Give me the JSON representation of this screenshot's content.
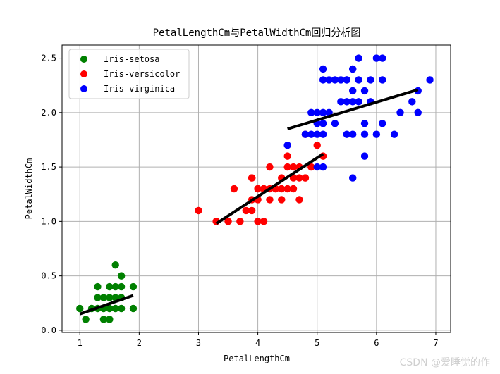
{
  "chart_data": {
    "type": "scatter",
    "title": "PetalLengthCm与PetalWidthCm回归分析图",
    "xlabel": "PetalLengthCm",
    "ylabel": "PetalWidthCm",
    "xlim": [
      0.7,
      7.25
    ],
    "ylim": [
      -0.02,
      2.62
    ],
    "xticks": [
      1,
      2,
      3,
      4,
      5,
      6,
      7
    ],
    "xtick_labels": [
      "1",
      "2",
      "3",
      "4",
      "5",
      "6",
      "7"
    ],
    "yticks": [
      0.0,
      0.5,
      1.0,
      1.5,
      2.0,
      2.5
    ],
    "ytick_labels": [
      "0.0",
      "0.5",
      "1.0",
      "1.5",
      "2.0",
      "2.5"
    ],
    "grid": true,
    "legend_position": "top-left",
    "series": [
      {
        "name": "Iris-setosa",
        "color": "#008000",
        "points": [
          [
            1.0,
            0.2
          ],
          [
            1.1,
            0.1
          ],
          [
            1.2,
            0.2
          ],
          [
            1.3,
            0.2
          ],
          [
            1.3,
            0.3
          ],
          [
            1.3,
            0.4
          ],
          [
            1.4,
            0.1
          ],
          [
            1.4,
            0.2
          ],
          [
            1.4,
            0.3
          ],
          [
            1.5,
            0.1
          ],
          [
            1.5,
            0.2
          ],
          [
            1.5,
            0.3
          ],
          [
            1.5,
            0.4
          ],
          [
            1.6,
            0.2
          ],
          [
            1.6,
            0.4
          ],
          [
            1.6,
            0.6
          ],
          [
            1.7,
            0.2
          ],
          [
            1.7,
            0.3
          ],
          [
            1.7,
            0.4
          ],
          [
            1.7,
            0.5
          ],
          [
            1.9,
            0.2
          ],
          [
            1.9,
            0.4
          ],
          [
            1.6,
            0.3
          ],
          [
            1.5,
            0.1
          ]
        ],
        "fit": [
          [
            1.0,
            0.15
          ],
          [
            1.9,
            0.32
          ]
        ]
      },
      {
        "name": "Iris-versicolor",
        "color": "#ff0000",
        "points": [
          [
            3.0,
            1.1
          ],
          [
            3.3,
            1.0
          ],
          [
            3.5,
            1.0
          ],
          [
            3.6,
            1.3
          ],
          [
            3.7,
            1.0
          ],
          [
            3.8,
            1.1
          ],
          [
            3.9,
            1.1
          ],
          [
            3.9,
            1.2
          ],
          [
            3.9,
            1.4
          ],
          [
            4.0,
            1.0
          ],
          [
            4.0,
            1.2
          ],
          [
            4.0,
            1.3
          ],
          [
            4.1,
            1.0
          ],
          [
            4.1,
            1.3
          ],
          [
            4.2,
            1.2
          ],
          [
            4.2,
            1.3
          ],
          [
            4.2,
            1.5
          ],
          [
            4.3,
            1.3
          ],
          [
            4.4,
            1.2
          ],
          [
            4.4,
            1.3
          ],
          [
            4.4,
            1.4
          ],
          [
            4.5,
            1.3
          ],
          [
            4.5,
            1.5
          ],
          [
            4.5,
            1.6
          ],
          [
            4.6,
            1.3
          ],
          [
            4.6,
            1.4
          ],
          [
            4.6,
            1.5
          ],
          [
            4.7,
            1.2
          ],
          [
            4.7,
            1.4
          ],
          [
            4.7,
            1.5
          ],
          [
            4.8,
            1.4
          ],
          [
            4.8,
            1.8
          ],
          [
            4.9,
            1.5
          ],
          [
            5.0,
            1.7
          ],
          [
            5.1,
            1.6
          ],
          [
            3.3,
            1.0
          ],
          [
            4.1,
            1.3
          ],
          [
            3.9,
            1.4
          ],
          [
            4.8,
            1.4
          ],
          [
            4.0,
            1.3
          ],
          [
            4.3,
            1.3
          ]
        ],
        "fit": [
          [
            3.3,
            0.98
          ],
          [
            5.1,
            1.62
          ]
        ]
      },
      {
        "name": "Iris-virginica",
        "color": "#0000ff",
        "points": [
          [
            4.5,
            1.7
          ],
          [
            4.8,
            1.8
          ],
          [
            4.9,
            1.8
          ],
          [
            5.0,
            1.5
          ],
          [
            5.0,
            1.9
          ],
          [
            5.0,
            2.0
          ],
          [
            5.1,
            1.5
          ],
          [
            5.1,
            1.8
          ],
          [
            5.1,
            1.9
          ],
          [
            5.1,
            2.0
          ],
          [
            5.1,
            2.3
          ],
          [
            5.1,
            2.4
          ],
          [
            5.2,
            2.0
          ],
          [
            5.2,
            2.3
          ],
          [
            5.3,
            1.9
          ],
          [
            5.3,
            2.3
          ],
          [
            5.4,
            2.1
          ],
          [
            5.4,
            2.3
          ],
          [
            5.5,
            1.8
          ],
          [
            5.5,
            2.1
          ],
          [
            5.5,
            2.3
          ],
          [
            5.6,
            1.4
          ],
          [
            5.6,
            1.8
          ],
          [
            5.6,
            2.1
          ],
          [
            5.6,
            2.2
          ],
          [
            5.6,
            2.4
          ],
          [
            5.7,
            2.1
          ],
          [
            5.7,
            2.3
          ],
          [
            5.7,
            2.5
          ],
          [
            5.8,
            1.6
          ],
          [
            5.8,
            1.8
          ],
          [
            5.8,
            2.2
          ],
          [
            5.9,
            2.1
          ],
          [
            5.9,
            2.3
          ],
          [
            6.0,
            1.8
          ],
          [
            6.0,
            2.5
          ],
          [
            6.1,
            1.9
          ],
          [
            6.1,
            2.3
          ],
          [
            6.1,
            2.5
          ],
          [
            6.3,
            1.8
          ],
          [
            6.4,
            2.0
          ],
          [
            6.6,
            2.1
          ],
          [
            6.7,
            2.0
          ],
          [
            6.7,
            2.2
          ],
          [
            6.9,
            2.3
          ],
          [
            4.9,
            2.0
          ],
          [
            5.0,
            1.8
          ],
          [
            5.5,
            2.3
          ],
          [
            5.6,
            2.4
          ],
          [
            5.8,
            1.9
          ]
        ],
        "fit": [
          [
            4.5,
            1.85
          ],
          [
            6.7,
            2.21
          ]
        ]
      }
    ]
  },
  "watermark": "CSDN @爱睡觉的作"
}
